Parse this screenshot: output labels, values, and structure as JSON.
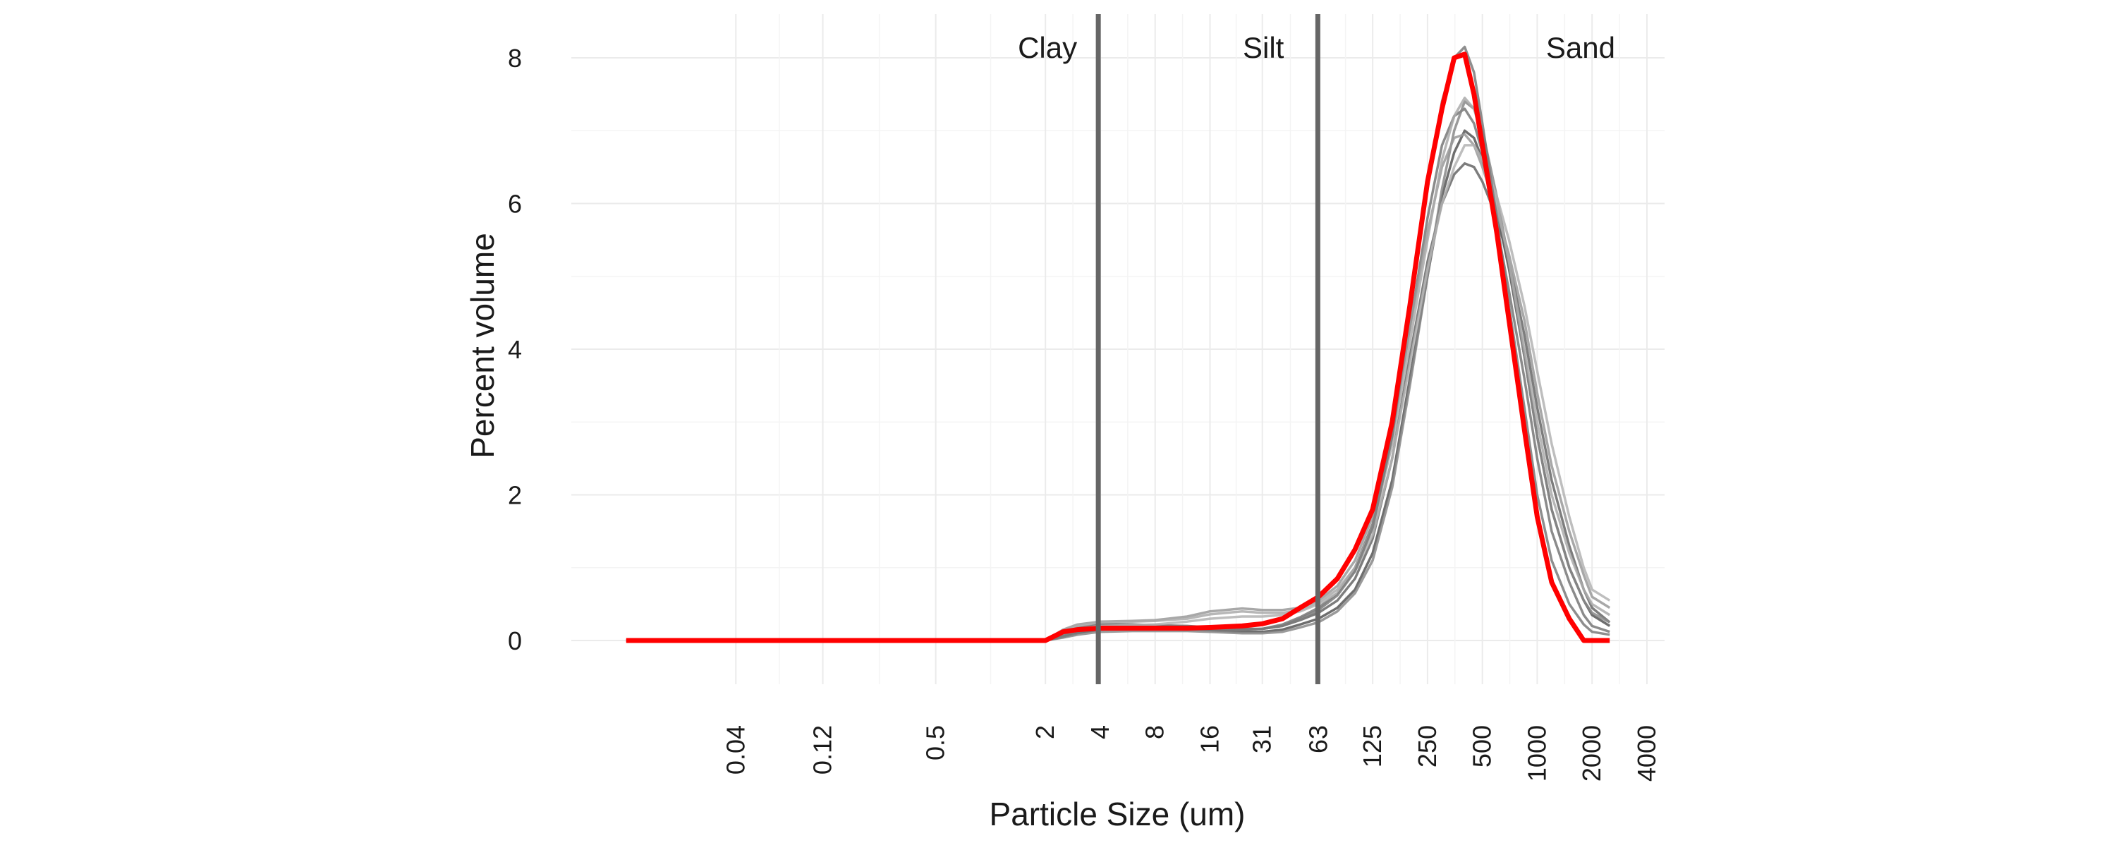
{
  "chart_data": {
    "type": "line",
    "title": "",
    "xlabel": "Particle Size (um)",
    "ylabel": "Percent volume",
    "x_scale": "log2",
    "x_ticks": [
      "0.04",
      "0.12",
      "0.5",
      "2",
      "4",
      "8",
      "16",
      "31",
      "63",
      "125",
      "250",
      "500",
      "1000",
      "2000",
      "4000"
    ],
    "y_ticks": [
      "0",
      "2",
      "4",
      "6",
      "8"
    ],
    "ylim": [
      -0.6,
      8.6
    ],
    "grid": true,
    "legend": "none",
    "boundaries": [
      {
        "x": 3.9,
        "label": "Clay"
      },
      {
        "x": 62.5,
        "label": "Silt"
      }
    ],
    "region_labels": [
      "Clay",
      "Silt",
      "Sand"
    ],
    "x": [
      0.01,
      0.02,
      0.04,
      0.08,
      0.12,
      0.25,
      0.5,
      1,
      1.5,
      2,
      2.5,
      3,
      4,
      6,
      8,
      12,
      16,
      24,
      31,
      40,
      50,
      63,
      80,
      100,
      125,
      160,
      200,
      250,
      300,
      350,
      400,
      450,
      500,
      600,
      700,
      850,
      1000,
      1200,
      1500,
      1800,
      2000,
      2500
    ],
    "series": [
      {
        "color": "#ff0000",
        "values": [
          0,
          0,
          0,
          0,
          0,
          0,
          0,
          0,
          0,
          0,
          0.12,
          0.15,
          0.17,
          0.17,
          0.17,
          0.17,
          0.18,
          0.2,
          0.23,
          0.3,
          0.45,
          0.6,
          0.85,
          1.25,
          1.8,
          3.0,
          4.6,
          6.3,
          7.3,
          8.0,
          8.05,
          7.5,
          6.8,
          5.6,
          4.4,
          2.9,
          1.7,
          0.8,
          0.3,
          0.0,
          0.0,
          0.0
        ]
      },
      {
        "color": "#555555",
        "values": [
          0,
          0,
          0,
          0,
          0,
          0,
          0,
          0,
          0,
          0,
          0.05,
          0.1,
          0.15,
          0.16,
          0.16,
          0.15,
          0.14,
          0.12,
          0.12,
          0.15,
          0.22,
          0.3,
          0.45,
          0.7,
          1.2,
          2.2,
          3.6,
          5.0,
          6.1,
          6.7,
          7.0,
          6.9,
          6.6,
          5.9,
          5.1,
          3.9,
          2.8,
          1.8,
          1.0,
          0.55,
          0.35,
          0.2
        ]
      },
      {
        "color": "#666666",
        "values": [
          0,
          0,
          0,
          0,
          0,
          0,
          0,
          0,
          0,
          0,
          0.1,
          0.18,
          0.22,
          0.22,
          0.21,
          0.2,
          0.18,
          0.16,
          0.16,
          0.2,
          0.28,
          0.38,
          0.55,
          0.85,
          1.4,
          2.5,
          3.9,
          5.2,
          6.0,
          6.4,
          6.55,
          6.5,
          6.3,
          5.8,
          5.2,
          4.2,
          3.2,
          2.2,
          1.3,
          0.7,
          0.45,
          0.25
        ]
      },
      {
        "color": "#777777",
        "values": [
          0,
          0,
          0,
          0,
          0,
          0,
          0,
          0,
          0,
          0,
          0.08,
          0.15,
          0.18,
          0.18,
          0.18,
          0.17,
          0.16,
          0.15,
          0.16,
          0.22,
          0.32,
          0.45,
          0.65,
          1.0,
          1.6,
          2.8,
          4.3,
          5.8,
          6.8,
          7.2,
          7.3,
          7.1,
          6.7,
          5.7,
          4.8,
          3.6,
          2.5,
          1.5,
          0.8,
          0.35,
          0.2,
          0.12
        ]
      },
      {
        "color": "#888888",
        "values": [
          0,
          0,
          0,
          0,
          0,
          0,
          0,
          0,
          0,
          0,
          0.04,
          0.08,
          0.12,
          0.13,
          0.13,
          0.13,
          0.12,
          0.1,
          0.1,
          0.12,
          0.18,
          0.25,
          0.4,
          0.65,
          1.1,
          2.1,
          3.5,
          5.0,
          6.2,
          7.0,
          7.4,
          7.3,
          7.0,
          6.1,
          5.2,
          3.9,
          2.8,
          1.8,
          1.0,
          0.55,
          0.38,
          0.25
        ]
      },
      {
        "color": "#999999",
        "values": [
          0,
          0,
          0,
          0,
          0,
          0,
          0,
          0,
          0,
          0,
          0.15,
          0.22,
          0.26,
          0.27,
          0.28,
          0.33,
          0.4,
          0.44,
          0.42,
          0.42,
          0.45,
          0.55,
          0.75,
          1.1,
          1.7,
          2.9,
          4.3,
          5.6,
          6.5,
          6.9,
          6.95,
          6.8,
          6.5,
          5.9,
          5.3,
          4.4,
          3.4,
          2.4,
          1.5,
          0.9,
          0.6,
          0.45
        ]
      },
      {
        "color": "#aaaaaa",
        "values": [
          0,
          0,
          0,
          0,
          0,
          0,
          0,
          0,
          0,
          0,
          0.12,
          0.2,
          0.25,
          0.26,
          0.27,
          0.3,
          0.36,
          0.4,
          0.38,
          0.38,
          0.42,
          0.52,
          0.7,
          1.0,
          1.55,
          2.7,
          4.1,
          5.5,
          6.6,
          7.2,
          7.45,
          7.3,
          6.9,
          6.0,
          5.2,
          4.0,
          3.0,
          2.0,
          1.2,
          0.7,
          0.5,
          0.35
        ]
      },
      {
        "color": "#b3b3b3",
        "values": [
          0,
          0,
          0,
          0,
          0,
          0,
          0,
          0,
          0,
          0,
          0.1,
          0.16,
          0.2,
          0.21,
          0.22,
          0.26,
          0.3,
          0.33,
          0.33,
          0.35,
          0.4,
          0.5,
          0.65,
          0.95,
          1.45,
          2.5,
          3.8,
          5.1,
          6.0,
          6.5,
          6.8,
          6.8,
          6.6,
          6.1,
          5.5,
          4.6,
          3.7,
          2.7,
          1.7,
          1.0,
          0.7,
          0.55
        ]
      },
      {
        "color": "#7a7a7a",
        "values": [
          0,
          0,
          0,
          0,
          0,
          0,
          0,
          0,
          0,
          0,
          0.06,
          0.12,
          0.16,
          0.16,
          0.16,
          0.16,
          0.16,
          0.15,
          0.16,
          0.2,
          0.3,
          0.42,
          0.62,
          0.95,
          1.55,
          2.8,
          4.5,
          6.2,
          7.4,
          8.0,
          8.15,
          7.8,
          7.1,
          5.8,
          4.6,
          3.2,
          2.0,
          1.1,
          0.5,
          0.22,
          0.12,
          0.08
        ]
      }
    ]
  }
}
